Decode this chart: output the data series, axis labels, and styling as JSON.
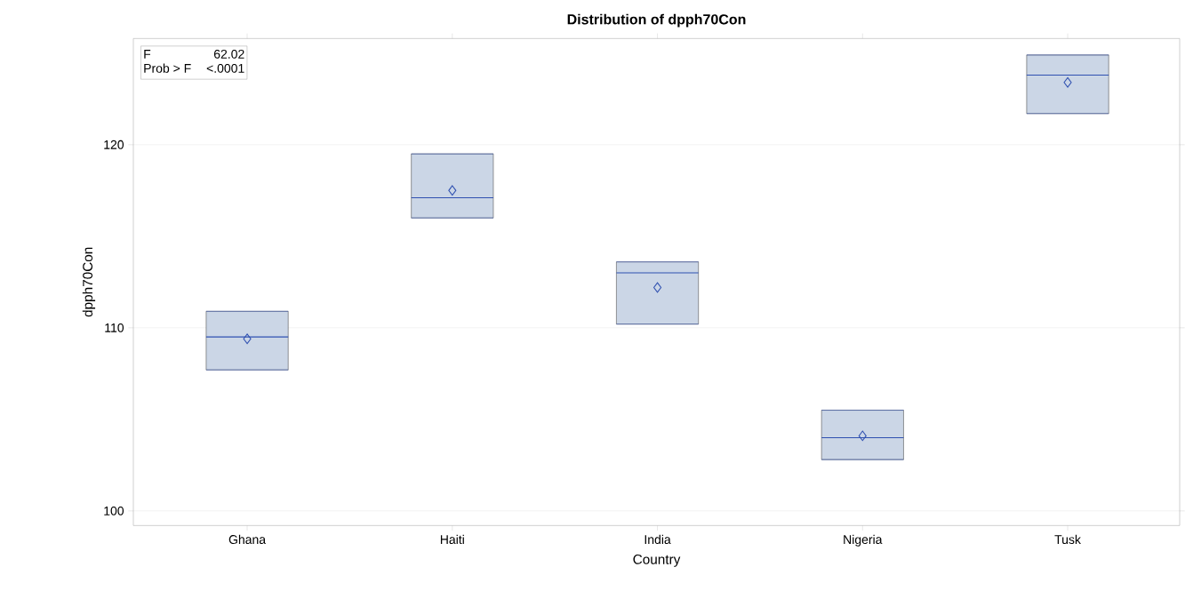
{
  "chart_data": {
    "type": "box",
    "title": "Distribution of dpph70Con",
    "xlabel": "Country",
    "ylabel": "dpph70Con",
    "categories": [
      "Ghana",
      "Haiti",
      "India",
      "Nigeria",
      "Tusk"
    ],
    "boxes": [
      {
        "low": 107.7,
        "q1": 107.7,
        "median": 109.5,
        "q3": 110.9,
        "high": 110.9,
        "mean": 109.4
      },
      {
        "low": 116.0,
        "q1": 116.0,
        "median": 117.1,
        "q3": 119.5,
        "high": 119.5,
        "mean": 117.5
      },
      {
        "low": 110.2,
        "q1": 110.2,
        "median": 113.0,
        "q3": 113.6,
        "high": 113.6,
        "mean": 112.2
      },
      {
        "low": 102.8,
        "q1": 102.8,
        "median": 104.0,
        "q3": 105.5,
        "high": 105.5,
        "mean": 104.1
      },
      {
        "low": 121.7,
        "q1": 121.7,
        "median": 123.8,
        "q3": 124.9,
        "high": 124.9,
        "mean": 123.4
      }
    ],
    "color": "#cbd6e6",
    "ylim": [
      99.2,
      125.8
    ],
    "yticks": [
      100,
      110,
      120
    ],
    "grid": "y",
    "annotations": [
      "F",
      "62.02",
      "Prob > F",
      "<.0001"
    ]
  }
}
